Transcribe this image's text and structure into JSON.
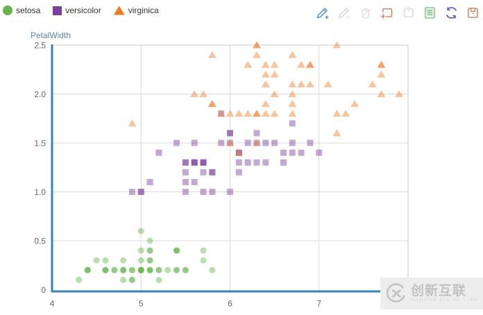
{
  "legend": {
    "items": [
      {
        "label": "setosa",
        "shape": "circle",
        "color": "#66b34d"
      },
      {
        "label": "versicolor",
        "shape": "square",
        "color": "#7b3f9f"
      },
      {
        "label": "virginica",
        "shape": "triangle",
        "color": "#ee7c26"
      }
    ]
  },
  "toolbar": {
    "icons": [
      {
        "name": "brush-add",
        "color": "#4a8fd3",
        "enabled": true
      },
      {
        "name": "brush-edit",
        "color": "#d5d9dd",
        "enabled": false
      },
      {
        "name": "brush-delete",
        "color": "#dde1e4",
        "enabled": false
      },
      {
        "name": "zoom-select",
        "color": "#c9805c",
        "enabled": true
      },
      {
        "name": "zoom-restore",
        "color": "#d5d9dd",
        "enabled": false
      },
      {
        "name": "data-view",
        "color": "#74c47c",
        "enabled": true
      },
      {
        "name": "restore",
        "color": "#5b45c0",
        "enabled": true
      },
      {
        "name": "save-image",
        "color": "#c9805c",
        "enabled": true
      }
    ]
  },
  "colors": {
    "axis": "#3583b5",
    "grid": "#d9d9d9",
    "border": "#c9c9c9",
    "tick_text": "#666666",
    "axis_title": "#5b84a7"
  },
  "watermark": {
    "title": "创新互联",
    "subtitle": "CHUANG XIN HU LIAN"
  },
  "chart_data": {
    "type": "scatter",
    "title": "",
    "xlabel": "",
    "ylabel": "PetalWidth",
    "xlim": [
      4,
      8
    ],
    "ylim": [
      0,
      2.5
    ],
    "x_ticks": [
      4,
      5,
      6,
      7
    ],
    "x_tick_labels": [
      "4",
      "5",
      "6",
      "7"
    ],
    "y_ticks": [
      2.5,
      2.0,
      1.5,
      1.0,
      0.5,
      0
    ],
    "y_tick_labels": [
      "2.5",
      "2.0",
      "1.5",
      "1.0",
      "0.5",
      "0"
    ],
    "grid": true,
    "legend_position": "top-left",
    "marker_opacity": 0.45,
    "series": [
      {
        "name": "setosa",
        "marker": "circle",
        "color": "#66b34d",
        "points": [
          [
            5.1,
            0.2
          ],
          [
            4.9,
            0.2
          ],
          [
            4.7,
            0.2
          ],
          [
            4.6,
            0.2
          ],
          [
            5.0,
            0.2
          ],
          [
            5.4,
            0.4
          ],
          [
            4.6,
            0.3
          ],
          [
            5.0,
            0.2
          ],
          [
            4.4,
            0.2
          ],
          [
            4.9,
            0.1
          ],
          [
            5.4,
            0.2
          ],
          [
            4.8,
            0.2
          ],
          [
            4.8,
            0.1
          ],
          [
            4.3,
            0.1
          ],
          [
            5.8,
            0.2
          ],
          [
            5.7,
            0.4
          ],
          [
            5.4,
            0.4
          ],
          [
            5.1,
            0.3
          ],
          [
            5.7,
            0.3
          ],
          [
            5.1,
            0.3
          ],
          [
            5.4,
            0.2
          ],
          [
            5.1,
            0.4
          ],
          [
            4.6,
            0.2
          ],
          [
            5.1,
            0.5
          ],
          [
            4.8,
            0.2
          ],
          [
            5.0,
            0.2
          ],
          [
            5.0,
            0.4
          ],
          [
            5.2,
            0.2
          ],
          [
            5.2,
            0.2
          ],
          [
            4.7,
            0.2
          ],
          [
            4.8,
            0.2
          ],
          [
            5.4,
            0.4
          ],
          [
            5.2,
            0.1
          ],
          [
            5.5,
            0.2
          ],
          [
            4.9,
            0.2
          ],
          [
            5.0,
            0.2
          ],
          [
            5.5,
            0.2
          ],
          [
            4.9,
            0.1
          ],
          [
            4.4,
            0.2
          ],
          [
            5.1,
            0.2
          ],
          [
            5.0,
            0.3
          ],
          [
            4.5,
            0.3
          ],
          [
            4.4,
            0.2
          ],
          [
            5.0,
            0.6
          ],
          [
            5.1,
            0.4
          ],
          [
            4.8,
            0.3
          ],
          [
            5.1,
            0.2
          ],
          [
            4.6,
            0.2
          ],
          [
            5.3,
            0.2
          ],
          [
            5.0,
            0.2
          ]
        ]
      },
      {
        "name": "versicolor",
        "marker": "square",
        "color": "#7b3f9f",
        "points": [
          [
            7.0,
            1.4
          ],
          [
            6.4,
            1.5
          ],
          [
            6.9,
            1.5
          ],
          [
            5.5,
            1.3
          ],
          [
            6.5,
            1.5
          ],
          [
            5.7,
            1.3
          ],
          [
            6.3,
            1.6
          ],
          [
            4.9,
            1.0
          ],
          [
            6.6,
            1.3
          ],
          [
            5.2,
            1.4
          ],
          [
            5.0,
            1.0
          ],
          [
            5.9,
            1.5
          ],
          [
            6.0,
            1.0
          ],
          [
            6.1,
            1.4
          ],
          [
            5.6,
            1.3
          ],
          [
            6.7,
            1.4
          ],
          [
            5.6,
            1.5
          ],
          [
            5.8,
            1.0
          ],
          [
            6.2,
            1.5
          ],
          [
            5.6,
            1.1
          ],
          [
            5.9,
            1.8
          ],
          [
            6.1,
            1.3
          ],
          [
            6.3,
            1.5
          ],
          [
            6.1,
            1.2
          ],
          [
            6.4,
            1.3
          ],
          [
            6.6,
            1.4
          ],
          [
            6.8,
            1.4
          ],
          [
            6.7,
            1.7
          ],
          [
            6.0,
            1.5
          ],
          [
            5.7,
            1.0
          ],
          [
            5.5,
            1.1
          ],
          [
            5.5,
            1.0
          ],
          [
            5.8,
            1.2
          ],
          [
            6.0,
            1.6
          ],
          [
            5.4,
            1.5
          ],
          [
            6.0,
            1.6
          ],
          [
            6.7,
            1.5
          ],
          [
            6.3,
            1.3
          ],
          [
            5.6,
            1.3
          ],
          [
            5.5,
            1.3
          ],
          [
            5.5,
            1.2
          ],
          [
            6.1,
            1.4
          ],
          [
            5.8,
            1.2
          ],
          [
            5.0,
            1.0
          ],
          [
            5.6,
            1.3
          ],
          [
            5.7,
            1.2
          ],
          [
            5.7,
            1.3
          ],
          [
            6.2,
            1.3
          ],
          [
            5.1,
            1.1
          ],
          [
            5.7,
            1.3
          ]
        ]
      },
      {
        "name": "virginica",
        "marker": "triangle",
        "color": "#ee7c26",
        "points": [
          [
            6.3,
            2.5
          ],
          [
            5.8,
            1.9
          ],
          [
            7.1,
            2.1
          ],
          [
            6.3,
            1.8
          ],
          [
            6.5,
            2.2
          ],
          [
            7.6,
            2.1
          ],
          [
            4.9,
            1.7
          ],
          [
            7.3,
            1.8
          ],
          [
            6.7,
            1.8
          ],
          [
            7.2,
            2.5
          ],
          [
            6.5,
            2.0
          ],
          [
            6.4,
            1.9
          ],
          [
            6.8,
            2.1
          ],
          [
            5.7,
            2.0
          ],
          [
            5.8,
            2.4
          ],
          [
            6.4,
            2.3
          ],
          [
            6.5,
            1.8
          ],
          [
            7.7,
            2.2
          ],
          [
            7.7,
            2.3
          ],
          [
            6.0,
            1.5
          ],
          [
            6.9,
            2.3
          ],
          [
            5.6,
            2.0
          ],
          [
            7.7,
            2.0
          ],
          [
            6.3,
            1.8
          ],
          [
            6.7,
            2.1
          ],
          [
            7.2,
            1.8
          ],
          [
            6.2,
            1.8
          ],
          [
            6.1,
            1.8
          ],
          [
            6.4,
            2.1
          ],
          [
            7.2,
            1.6
          ],
          [
            7.4,
            1.9
          ],
          [
            7.9,
            2.0
          ],
          [
            6.4,
            2.2
          ],
          [
            6.3,
            1.5
          ],
          [
            6.1,
            1.4
          ],
          [
            7.7,
            2.3
          ],
          [
            6.3,
            2.4
          ],
          [
            6.4,
            1.8
          ],
          [
            6.0,
            1.8
          ],
          [
            6.9,
            2.1
          ],
          [
            6.7,
            2.4
          ],
          [
            6.9,
            2.3
          ],
          [
            5.8,
            1.9
          ],
          [
            6.8,
            2.3
          ],
          [
            6.7,
            1.9
          ],
          [
            6.7,
            2.0
          ],
          [
            6.3,
            2.5
          ],
          [
            6.5,
            2.3
          ],
          [
            6.2,
            2.3
          ],
          [
            5.9,
            1.8
          ]
        ]
      }
    ]
  }
}
